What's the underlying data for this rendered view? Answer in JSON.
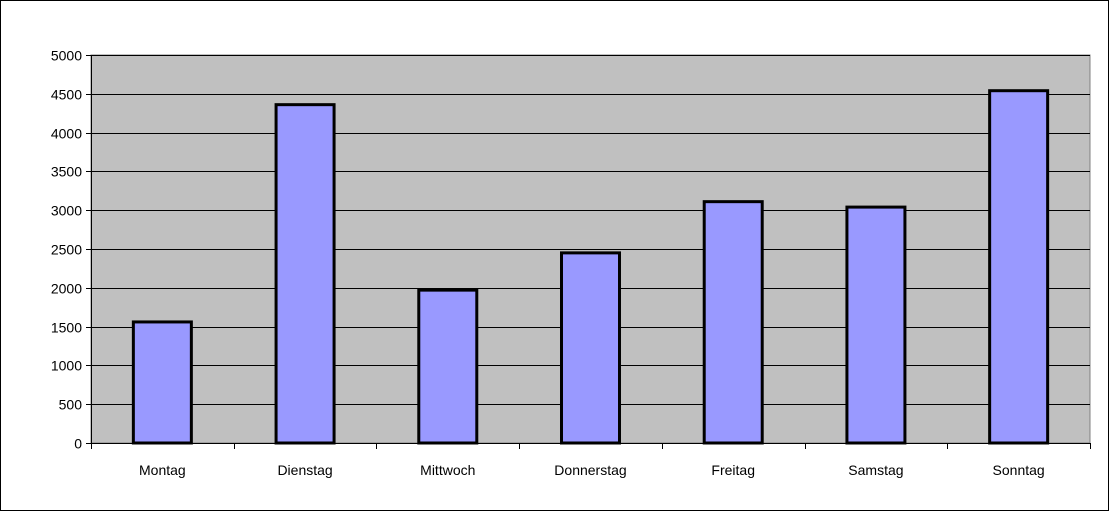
{
  "chart_data": {
    "type": "bar",
    "title": "",
    "xlabel": "",
    "ylabel": "",
    "categories": [
      "Montag",
      "Dienstag",
      "Mittwoch",
      "Donnerstag",
      "Freitag",
      "Samstag",
      "Sonntag"
    ],
    "values": [
      1560,
      4360,
      1970,
      2450,
      3110,
      3040,
      4540
    ],
    "ylim": [
      0,
      5000
    ],
    "yticks": [
      "0",
      "500",
      "1000",
      "1500",
      "2000",
      "2500",
      "3000",
      "3500",
      "4000",
      "4500",
      "5000"
    ],
    "grid": true,
    "legend": "none",
    "colors": {
      "plot_background": "#c0c0c0",
      "bar_fill": "#9999ff",
      "bar_stroke": "#000000",
      "gridline": "#000000"
    }
  }
}
